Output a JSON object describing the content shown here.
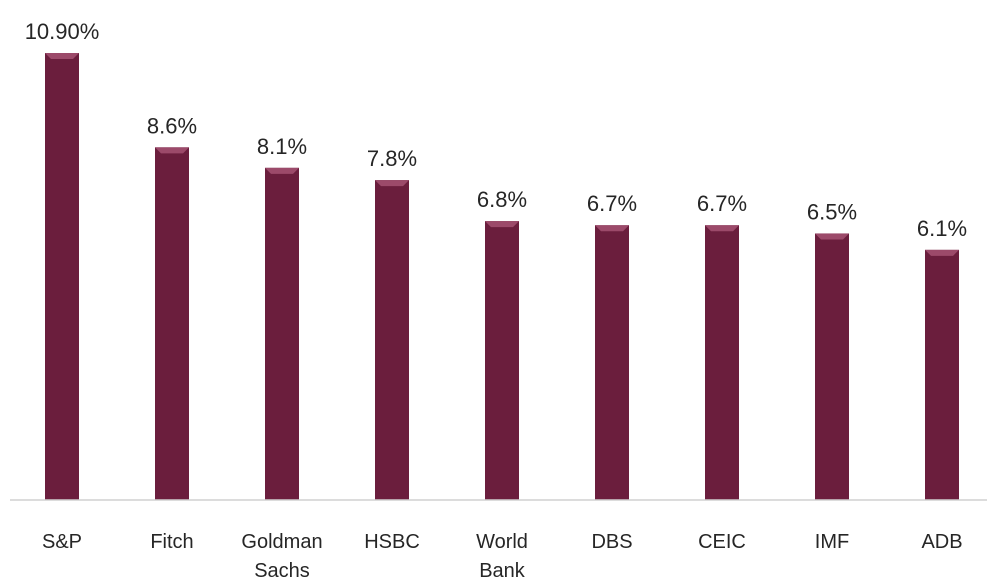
{
  "chart_data": {
    "type": "bar",
    "categories": [
      [
        "S&P"
      ],
      [
        "Fitch"
      ],
      [
        "Goldman",
        "Sachs"
      ],
      [
        "HSBC"
      ],
      [
        "World",
        "Bank"
      ],
      [
        "DBS"
      ],
      [
        "CEIC"
      ],
      [
        "IMF"
      ],
      [
        "ADB"
      ]
    ],
    "values": [
      10.9,
      8.6,
      8.1,
      7.8,
      6.8,
      6.7,
      6.7,
      6.5,
      6.1
    ],
    "data_labels": [
      "10.90%",
      "8.6%",
      "8.1%",
      "7.8%",
      "6.8%",
      "6.7%",
      "6.7%",
      "6.5%",
      "6.1%"
    ],
    "ylim": [
      0,
      11
    ],
    "grid": false,
    "legend": "none",
    "bar_color": "#6b1e3d",
    "bar_highlight": "#9c4a6a",
    "axis_color": "#d0d0d0"
  }
}
